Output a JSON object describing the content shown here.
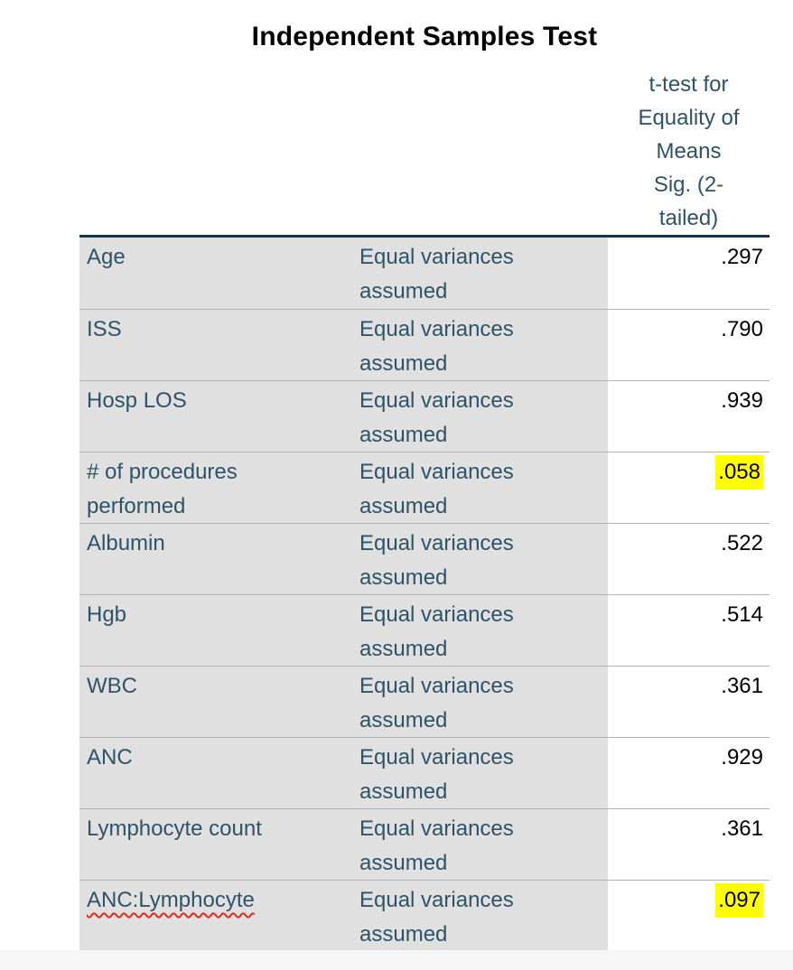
{
  "title": "Independent Samples Test",
  "table": {
    "column_header": {
      "lines": [
        "t-test for",
        "Equality of",
        "Means",
        "Sig. (2-",
        "tailed)"
      ],
      "full_text": "t-test for Equality of Means Sig. (2-tailed)"
    },
    "variance_label": "Equal variances assumed",
    "rows": [
      {
        "label": "Age",
        "sig": ".297",
        "highlighted": false,
        "spellcheck_underline": false
      },
      {
        "label": "ISS",
        "sig": ".790",
        "highlighted": false,
        "spellcheck_underline": false
      },
      {
        "label": "Hosp LOS",
        "sig": ".939",
        "highlighted": false,
        "spellcheck_underline": false
      },
      {
        "label": "# of procedures performed",
        "sig": ".058",
        "highlighted": true,
        "spellcheck_underline": false
      },
      {
        "label": "Albumin",
        "sig": ".522",
        "highlighted": false,
        "spellcheck_underline": false
      },
      {
        "label": "Hgb",
        "sig": ".514",
        "highlighted": false,
        "spellcheck_underline": false
      },
      {
        "label": "WBC",
        "sig": ".361",
        "highlighted": false,
        "spellcheck_underline": false
      },
      {
        "label": "ANC",
        "sig": ".929",
        "highlighted": false,
        "spellcheck_underline": false
      },
      {
        "label": "Lymphocyte count",
        "sig": ".361",
        "highlighted": false,
        "spellcheck_underline": false
      },
      {
        "label": "ANC:Lymphocyte",
        "sig": ".097",
        "highlighted": true,
        "spellcheck_underline": true
      }
    ],
    "colors": {
      "header_text": "#2e5368",
      "label_text": "#2e5368",
      "value_text": "#000000",
      "cell_background": "#e0e0e0",
      "highlight": "#ffff00",
      "thick_border": "#16364a",
      "row_separator": "#b0b0b0",
      "spellcheck_underline": "#e02b20",
      "title_text": "#000000"
    }
  }
}
